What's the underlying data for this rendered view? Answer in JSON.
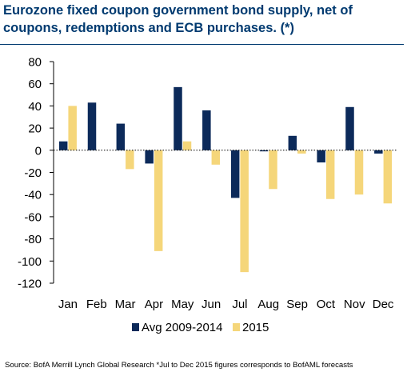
{
  "chart_data": {
    "type": "bar",
    "title": "Eurozone fixed coupon government bond supply, net of coupons, redemptions and ECB purchases. (*)",
    "categories": [
      "Jan",
      "Feb",
      "Mar",
      "Apr",
      "May",
      "Jun",
      "Jul",
      "Aug",
      "Sep",
      "Oct",
      "Nov",
      "Dec"
    ],
    "series": [
      {
        "name": "Avg 2009-2014",
        "color": "#0c2a5a",
        "values": [
          8,
          43,
          24,
          -12,
          57,
          36,
          -43,
          -1,
          13,
          -11,
          39,
          -3
        ]
      },
      {
        "name": "2015",
        "color": "#f5d67a",
        "values": [
          40,
          0,
          -17,
          -91,
          8,
          -13,
          -110,
          -35,
          -3,
          -44,
          -40,
          -48
        ]
      }
    ],
    "ylim": [
      -120,
      80
    ],
    "yticks": [
      80,
      60,
      40,
      20,
      0,
      -20,
      -40,
      -60,
      -80,
      -100,
      -120
    ],
    "xlabel": "",
    "ylabel": "",
    "grid": false,
    "legend": "bottom-center",
    "zero_line": "dotted"
  },
  "source": "Source: BofA Merrill Lynch Global Research *Jul to Dec 2015 figures corresponds to BofAML forecasts"
}
